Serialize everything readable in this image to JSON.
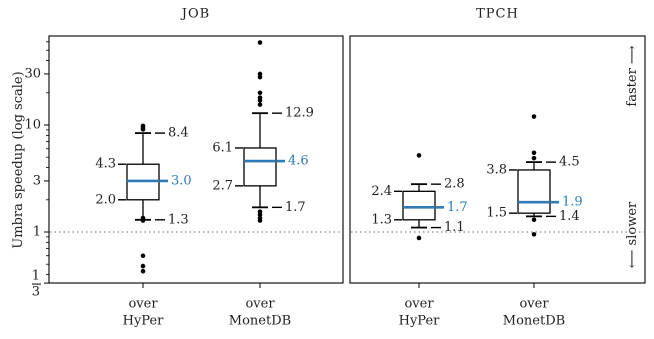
{
  "chart_data": {
    "type": "box",
    "ylabel": "Umbra speedup (log scale)",
    "yscale": "log",
    "ylim": [
      0.28,
      65
    ],
    "yticks": [
      {
        "value": 0.3333,
        "label_num": "1",
        "label_den": "3"
      },
      {
        "value": 1,
        "label": "1"
      },
      {
        "value": 3,
        "label": "3"
      },
      {
        "value": 10,
        "label": "10"
      },
      {
        "value": 30,
        "label": "30"
      }
    ],
    "reference_line": 1,
    "side_labels": {
      "up": "faster ⟶",
      "down": "⟵ slower"
    },
    "panels": [
      {
        "title": "JOB",
        "categories": [
          {
            "line1": "over",
            "line2": "HyPer",
            "whisker_low": 1.3,
            "q1": 2.0,
            "median": 3.0,
            "q3": 4.3,
            "whisker_high": 8.4,
            "labels": {
              "q3": "4.3",
              "q1": "2.0",
              "median": "3.0",
              "whisker_high": "8.4",
              "whisker_low": "1.3"
            },
            "outliers": [
              9.8,
              9.4,
              9.1,
              1.35,
              1.28,
              0.6,
              0.48,
              0.43
            ]
          },
          {
            "line1": "over",
            "line2": "MonetDB",
            "whisker_low": 1.7,
            "q1": 2.7,
            "median": 4.6,
            "q3": 6.1,
            "whisker_high": 12.9,
            "labels": {
              "q3": "6.1",
              "q1": "2.7",
              "median": "4.6",
              "whisker_high": "12.9",
              "whisker_low": "1.7"
            },
            "outliers": [
              59,
              30,
              28,
              20,
              18,
              17,
              15.5,
              1.55,
              1.45,
              1.35,
              1.28
            ]
          }
        ]
      },
      {
        "title": "TPCH",
        "categories": [
          {
            "line1": "over",
            "line2": "HyPer",
            "whisker_low": 1.1,
            "q1": 1.3,
            "median": 1.7,
            "q3": 2.4,
            "whisker_high": 2.8,
            "labels": {
              "q3": "2.4",
              "q1": "1.3",
              "median": "1.7",
              "whisker_high": "2.8",
              "whisker_low": "1.1"
            },
            "outliers": [
              5.2,
              0.88
            ]
          },
          {
            "line1": "over",
            "line2": "MonetDB",
            "whisker_low": 1.4,
            "q1": 1.5,
            "median": 1.9,
            "q3": 3.8,
            "whisker_high": 4.5,
            "labels": {
              "q3": "3.8",
              "q1": "1.5",
              "median": "1.9",
              "whisker_high": "4.5",
              "whisker_low": "1.4"
            },
            "outliers": [
              12,
              5.5,
              4.9,
              1.3,
              0.95
            ]
          }
        ]
      }
    ]
  }
}
